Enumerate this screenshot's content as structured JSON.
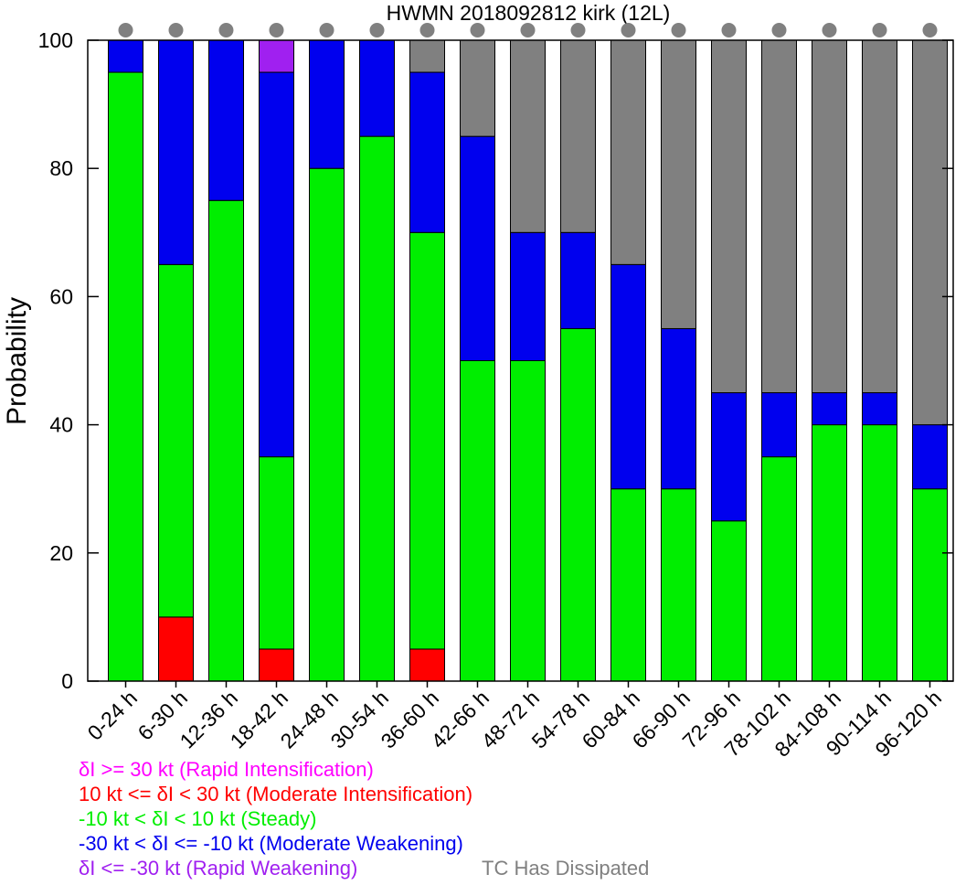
{
  "chart_data": {
    "type": "bar",
    "title": "HWMN 2018092812 kirk (12L)",
    "ylabel": "Probability",
    "xlabel": "",
    "ylim": [
      0,
      100
    ],
    "yticks": [
      0,
      20,
      40,
      60,
      80,
      100
    ],
    "categories": [
      "0-24 h",
      "6-30 h",
      "12-36 h",
      "18-42 h",
      "24-48 h",
      "30-54 h",
      "36-60 h",
      "42-66 h",
      "48-72 h",
      "54-78 h",
      "60-84 h",
      "66-90 h",
      "72-96 h",
      "78-102 h",
      "84-108 h",
      "90-114 h",
      "96-120 h"
    ],
    "series": [
      {
        "key": "ri",
        "color": "#ff00ff",
        "values": [
          0,
          0,
          0,
          0,
          0,
          0,
          0,
          0,
          0,
          0,
          0,
          0,
          0,
          0,
          0,
          0,
          0
        ]
      },
      {
        "key": "mi",
        "color": "#ff0000",
        "values": [
          0,
          10,
          0,
          5,
          0,
          0,
          5,
          0,
          0,
          0,
          0,
          0,
          0,
          0,
          0,
          0,
          0
        ]
      },
      {
        "key": "steady",
        "color": "#00ee00",
        "values": [
          95,
          55,
          75,
          30,
          80,
          85,
          65,
          50,
          50,
          55,
          30,
          30,
          25,
          35,
          40,
          40,
          30
        ]
      },
      {
        "key": "mw",
        "color": "#0000ee",
        "values": [
          5,
          35,
          25,
          60,
          20,
          15,
          25,
          35,
          20,
          15,
          35,
          25,
          20,
          10,
          5,
          5,
          10
        ]
      },
      {
        "key": "rw",
        "color": "#a020f0",
        "values": [
          0,
          0,
          0,
          5,
          0,
          0,
          0,
          0,
          0,
          0,
          0,
          0,
          0,
          0,
          0,
          0,
          0
        ]
      },
      {
        "key": "dissipated",
        "color": "#808080",
        "values": [
          0,
          0,
          0,
          0,
          0,
          0,
          5,
          15,
          30,
          30,
          35,
          45,
          55,
          55,
          55,
          55,
          60
        ]
      }
    ],
    "marker_color": "#808080",
    "legend": [
      {
        "text": "δI >= 30 kt (Rapid Intensification)",
        "color": "#ff00ff"
      },
      {
        "text": "10 kt <= δI < 30 kt (Moderate Intensification)",
        "color": "#ff0000"
      },
      {
        "text": "-10 kt < δI < 10 kt (Steady)",
        "color": "#00ee00"
      },
      {
        "text": "-30 kt < δI <= -10 kt (Moderate Weakening)",
        "color": "#0000ee"
      },
      {
        "text": "δI <= -30 kt (Rapid Weakening)",
        "color": "#a020f0"
      },
      {
        "text": "TC Has Dissipated",
        "color": "#808080"
      }
    ]
  }
}
